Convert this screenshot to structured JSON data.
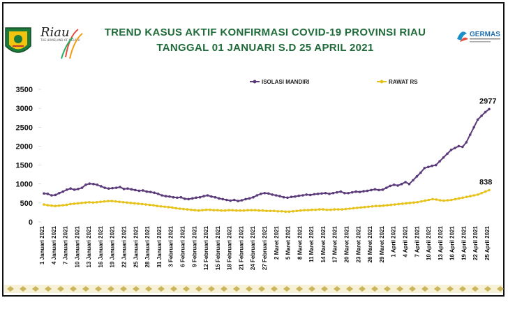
{
  "header": {
    "title_line1": "TREND KASUS AKTIF KONFIRMASI COVID-19 PROVINSI RIAU",
    "title_line2": "TANGGAL 01 JANUARI S.D 25 APRIL 2021",
    "germas_text": "GERMAS",
    "brand_script": "Riau",
    "brand_sub": "THE HOMELAND OF MELAYU"
  },
  "colors": {
    "title": "#1f6b3a",
    "series_isolasi": "#5b3a7a",
    "series_rawat": "#e6c21a",
    "gridline": "#dddddd",
    "border_band": "#cbb55a"
  },
  "chart_data": {
    "type": "line",
    "title": "TREND KASUS AKTIF KONFIRMASI COVID-19 PROVINSI RIAU",
    "subtitle": "TANGGAL 01 JANUARI S.D 25 APRIL 2021",
    "ylim": [
      0,
      3500
    ],
    "yticks": [
      0,
      500,
      1000,
      1500,
      2000,
      2500,
      3000,
      3500
    ],
    "x_labels": [
      "1 Januari 2021",
      "4 Januari 2021",
      "7 Januari 2021",
      "10 Januari 2021",
      "13 Januari 2021",
      "16 Januari 2021",
      "19 Januari 2021",
      "22 Januari 2021",
      "25 Januari 2021",
      "28 Januari 2021",
      "31 Januari 2021",
      "3 Februari 2021",
      "6 Februari 2021",
      "9 Februari 2021",
      "12 Februari 2021",
      "15 Februari 2021",
      "18 Februari 2021",
      "21 Februari 2021",
      "24 Februari 2021",
      "27 Februari 2021",
      "2 Maret 2021",
      "5 Maret 2021",
      "8 Maret 2021",
      "11 Maret 2021",
      "14 Maret 2021",
      "17 Maret 2021",
      "20 Maret 2021",
      "23 Maret 2021",
      "26 Maret 2021",
      "29 Maret 2021",
      "1 April 2021",
      "4 April 2021",
      "7 April 2021",
      "10 April 2021",
      "13 April 2021",
      "16 April 2021",
      "19 April 2021",
      "22 April 2021",
      "25 April 2021"
    ],
    "legend_position": "top",
    "series": [
      {
        "name": "ISOLASI MANDIRI",
        "end_label": "2977",
        "values": [
          750,
          740,
          700,
          710,
          760,
          800,
          850,
          880,
          850,
          870,
          900,
          980,
          1010,
          1000,
          980,
          940,
          900,
          880,
          890,
          900,
          920,
          870,
          880,
          860,
          840,
          820,
          830,
          800,
          790,
          770,
          740,
          700,
          680,
          670,
          650,
          640,
          650,
          610,
          600,
          620,
          640,
          650,
          680,
          700,
          670,
          650,
          620,
          600,
          580,
          560,
          580,
          550,
          570,
          600,
          620,
          650,
          700,
          740,
          760,
          750,
          720,
          700,
          680,
          650,
          640,
          660,
          670,
          690,
          700,
          720,
          710,
          730,
          740,
          750,
          760,
          740,
          760,
          780,
          800,
          760,
          760,
          780,
          800,
          790,
          810,
          820,
          840,
          860,
          840,
          850,
          900,
          950,
          980,
          960,
          1000,
          1050,
          1000,
          1100,
          1200,
          1300,
          1420,
          1450,
          1480,
          1500,
          1600,
          1700,
          1800,
          1900,
          1950,
          2000,
          1980,
          2100,
          2300,
          2500,
          2700,
          2800,
          2900,
          2977
        ]
      },
      {
        "name": "RAWAT  RS",
        "end_label": "838",
        "values": [
          460,
          440,
          430,
          420,
          430,
          440,
          450,
          470,
          480,
          490,
          500,
          510,
          520,
          510,
          520,
          530,
          540,
          550,
          550,
          540,
          530,
          520,
          510,
          500,
          490,
          480,
          470,
          460,
          450,
          440,
          420,
          410,
          400,
          390,
          380,
          360,
          350,
          340,
          330,
          320,
          310,
          300,
          310,
          320,
          320,
          310,
          310,
          300,
          300,
          310,
          310,
          300,
          300,
          300,
          310,
          310,
          310,
          300,
          300,
          290,
          290,
          290,
          280,
          280,
          270,
          270,
          280,
          290,
          300,
          310,
          310,
          320,
          320,
          330,
          330,
          320,
          320,
          330,
          330,
          330,
          340,
          350,
          360,
          370,
          380,
          390,
          400,
          410,
          420,
          420,
          430,
          440,
          450,
          460,
          470,
          480,
          490,
          500,
          510,
          520,
          540,
          560,
          580,
          600,
          590,
          570,
          560,
          570,
          580,
          600,
          620,
          640,
          660,
          680,
          700,
          720,
          760,
          800,
          838
        ]
      }
    ]
  }
}
